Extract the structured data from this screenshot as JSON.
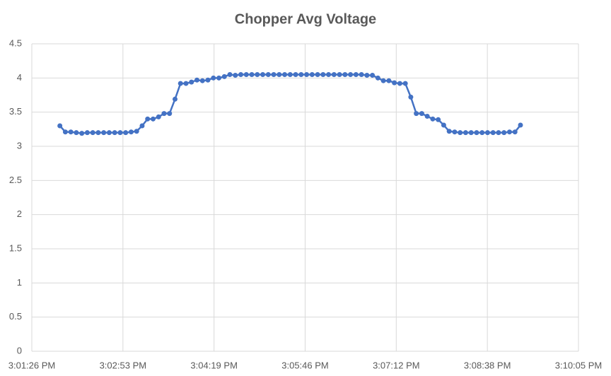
{
  "chart_data": {
    "type": "line",
    "title": "Chopper Avg Voltage",
    "x": [
      54113.0,
      54118.2,
      54123.4,
      54128.6,
      54133.8,
      54139.0,
      54144.2,
      54149.4,
      54154.6,
      54159.8,
      54165.0,
      54170.2,
      54175.4,
      54180.6,
      54185.8,
      54191.0,
      54196.2,
      54201.4,
      54206.6,
      54211.8,
      54217.0,
      54222.2,
      54227.4,
      54232.6,
      54237.8,
      54243.0,
      54248.2,
      54253.4,
      54258.6,
      54263.8,
      54269.0,
      54274.2,
      54279.4,
      54284.6,
      54289.8,
      54295.0,
      54300.2,
      54305.4,
      54310.6,
      54315.8,
      54321.0,
      54326.2,
      54331.4,
      54336.6,
      54341.8,
      54347.0,
      54352.2,
      54357.4,
      54362.6,
      54367.8,
      54373.0,
      54378.2,
      54383.4,
      54388.6,
      54393.8,
      54399.0,
      54404.2,
      54409.4,
      54414.6,
      54419.8,
      54425.0,
      54430.2,
      54435.4,
      54440.6,
      54445.8,
      54451.0,
      54456.2,
      54461.4,
      54466.6,
      54471.8,
      54477.0,
      54482.2,
      54487.4,
      54492.6,
      54497.8,
      54503.0,
      54508.2,
      54513.4,
      54518.6,
      54523.8,
      54529.0,
      54534.2,
      54539.4,
      54544.6,
      54549.8
    ],
    "series": [
      {
        "color": "#4472c4",
        "values": [
          3.3,
          3.21,
          3.21,
          3.2,
          3.19,
          3.2,
          3.2,
          3.2,
          3.2,
          3.2,
          3.2,
          3.2,
          3.2,
          3.21,
          3.22,
          3.3,
          3.4,
          3.4,
          3.43,
          3.48,
          3.48,
          3.69,
          3.92,
          3.92,
          3.94,
          3.97,
          3.96,
          3.97,
          4.0,
          4.0,
          4.02,
          4.05,
          4.04,
          4.05,
          4.05,
          4.05,
          4.05,
          4.05,
          4.05,
          4.05,
          4.05,
          4.05,
          4.05,
          4.05,
          4.05,
          4.05,
          4.05,
          4.05,
          4.05,
          4.05,
          4.05,
          4.05,
          4.05,
          4.05,
          4.05,
          4.05,
          4.04,
          4.04,
          4.0,
          3.96,
          3.96,
          3.93,
          3.92,
          3.92,
          3.72,
          3.48,
          3.48,
          3.44,
          3.4,
          3.39,
          3.31,
          3.22,
          3.21,
          3.2,
          3.2,
          3.2,
          3.2,
          3.2,
          3.2,
          3.2,
          3.2,
          3.2,
          3.21,
          3.21,
          3.31
        ]
      }
    ],
    "xlim": [
      54086.4,
      54604.8
    ],
    "xticks": [
      {
        "value": 54086.4,
        "label": "3:01:26 PM"
      },
      {
        "value": 54172.8,
        "label": "3:02:53 PM"
      },
      {
        "value": 54259.2,
        "label": "3:04:19 PM"
      },
      {
        "value": 54345.6,
        "label": "3:05:46 PM"
      },
      {
        "value": 54432.0,
        "label": "3:07:12 PM"
      },
      {
        "value": 54518.4,
        "label": "3:08:38 PM"
      },
      {
        "value": 54604.8,
        "label": "3:10:05 PM"
      }
    ],
    "ylim": [
      0,
      4.5
    ],
    "yticks": [
      0,
      0.5,
      1,
      1.5,
      2,
      2.5,
      3,
      3.5,
      4,
      4.5
    ],
    "grid": true,
    "markers": true
  }
}
